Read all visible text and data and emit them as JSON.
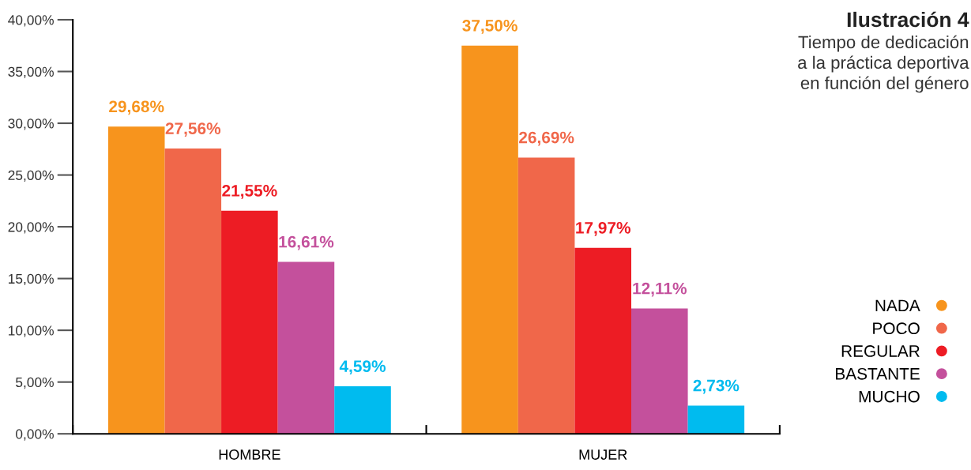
{
  "chart_data": {
    "type": "bar",
    "title": "Ilustración 4",
    "subtitle": "Tiempo de dedicación\na la práctica deportiva\nen función del género",
    "categories": [
      "HOMBRE",
      "MUJER"
    ],
    "series": [
      {
        "name": "NADA",
        "color": "#f7941d",
        "values": [
          29.68,
          37.5
        ],
        "value_labels": [
          "29,68%",
          "37,50%"
        ]
      },
      {
        "name": "POCO",
        "color": "#f0674a",
        "values": [
          27.56,
          26.69
        ],
        "value_labels": [
          "27,56%",
          "26,69%"
        ]
      },
      {
        "name": "REGULAR",
        "color": "#ed1c24",
        "values": [
          21.55,
          17.97
        ],
        "value_labels": [
          "21,55%",
          "17,97%"
        ]
      },
      {
        "name": "BASTANTE",
        "color": "#c4509c",
        "values": [
          16.61,
          12.11
        ],
        "value_labels": [
          "16,61%",
          "12,11%"
        ]
      },
      {
        "name": "MUCHO",
        "color": "#00bbef",
        "values": [
          4.59,
          2.73
        ],
        "value_labels": [
          "4,59%",
          "2,73%"
        ]
      }
    ],
    "ylim": [
      0,
      40
    ],
    "yticks": [
      {
        "value": 0,
        "label": "0,00%"
      },
      {
        "value": 5,
        "label": "5,00%"
      },
      {
        "value": 10,
        "label": "10,00%"
      },
      {
        "value": 15,
        "label": "15,00%"
      },
      {
        "value": 20,
        "label": "20,00%"
      },
      {
        "value": 25,
        "label": "25,00%"
      },
      {
        "value": 30,
        "label": "30,00%"
      },
      {
        "value": 35,
        "label": "35,00%"
      },
      {
        "value": 40,
        "label": "40,00%"
      }
    ],
    "grid": false,
    "legend": "right"
  }
}
